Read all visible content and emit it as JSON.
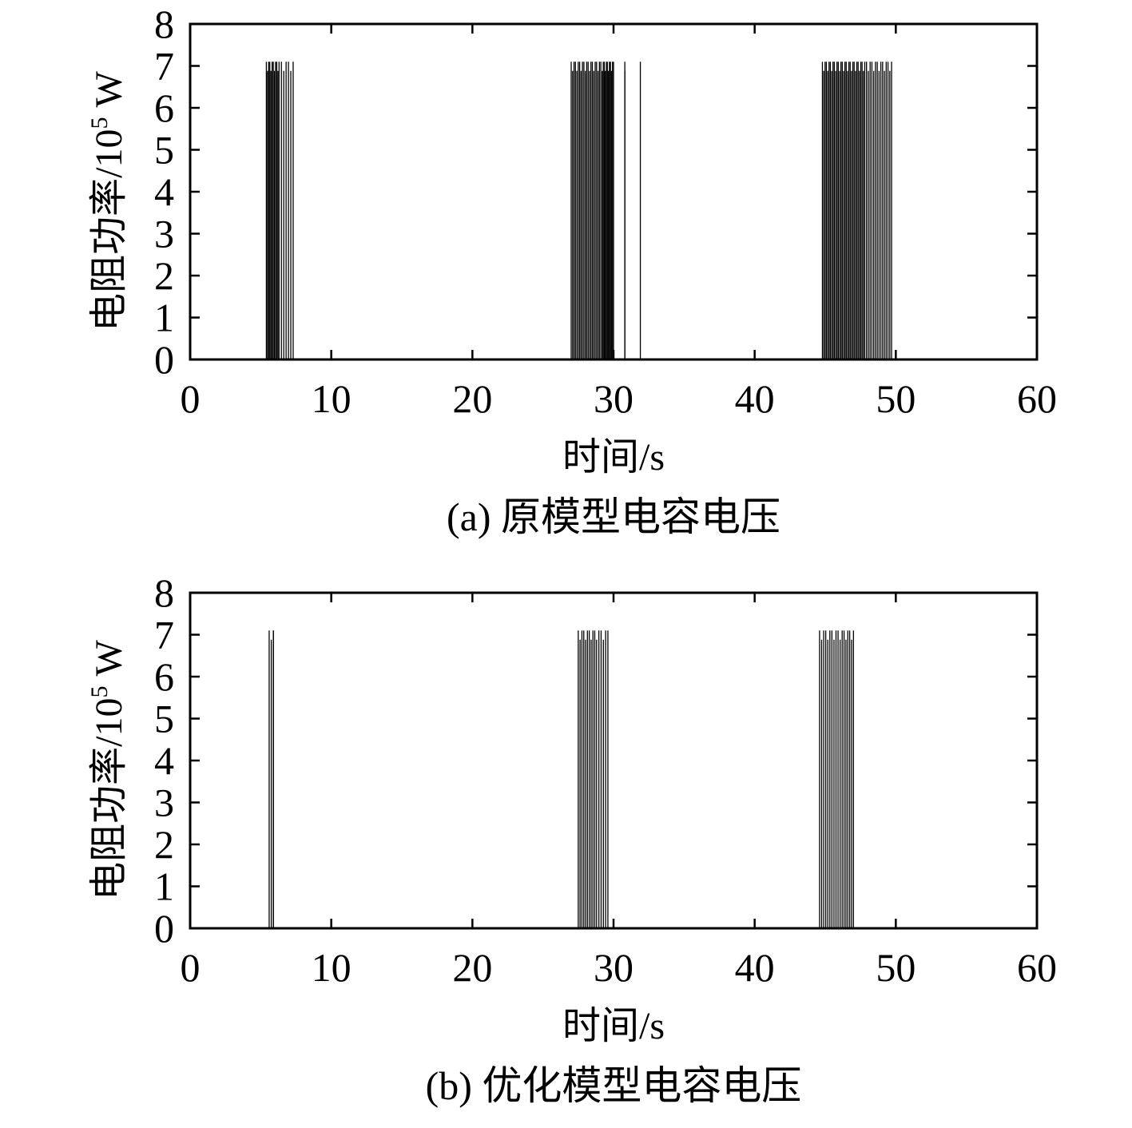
{
  "chart_data": [
    {
      "type": "bar",
      "render": "spikes",
      "caption": "(a) 原模型电容电压",
      "xlabel": "时间/s",
      "ylabel_main": "电阻功率/10",
      "ylabel_sup": "5",
      "ylabel_unit": " W",
      "xlim": [
        0,
        60
      ],
      "ylim": [
        0,
        8
      ],
      "xticks": [
        0,
        10,
        20,
        30,
        40,
        50,
        60
      ],
      "yticks": [
        0,
        1,
        2,
        3,
        4,
        5,
        6,
        7,
        8
      ],
      "grid": false,
      "color": "#000000",
      "series": [
        {
          "bursts": [
            {
              "x_start": 5.4,
              "x_end": 7.3,
              "peak": 7.1,
              "count": 18,
              "dense_until": 6.3
            },
            {
              "x_start": 27.0,
              "x_end": 30.0,
              "peak": 7.1,
              "count": 34,
              "dense_until": 29.2
            },
            {
              "x_start": 30.8,
              "x_end": 31.9,
              "peak": 7.1,
              "count": 3,
              "dense_until": 30.8
            },
            {
              "x_start": 44.8,
              "x_end": 49.7,
              "peak": 7.1,
              "count": 48,
              "dense_until": 47.8
            }
          ]
        }
      ]
    },
    {
      "type": "bar",
      "render": "spikes",
      "caption": "(b) 优化模型电容电压",
      "xlabel": "时间/s",
      "ylabel_main": "电阻功率/10",
      "ylabel_sup": "5",
      "ylabel_unit": " W",
      "xlim": [
        0,
        60
      ],
      "ylim": [
        0,
        8
      ],
      "xticks": [
        0,
        10,
        20,
        30,
        40,
        50,
        60
      ],
      "yticks": [
        0,
        1,
        2,
        3,
        4,
        5,
        6,
        7,
        8
      ],
      "grid": false,
      "color": "#000000",
      "series": [
        {
          "bursts": [
            {
              "x_start": 5.6,
              "x_end": 5.9,
              "peak": 7.1,
              "count": 4,
              "dense_until": 5.9
            },
            {
              "x_start": 27.5,
              "x_end": 29.6,
              "peak": 7.1,
              "count": 16,
              "dense_until": 28.8
            },
            {
              "x_start": 44.6,
              "x_end": 47.0,
              "peak": 7.1,
              "count": 18,
              "dense_until": 46.2
            }
          ]
        }
      ]
    }
  ]
}
